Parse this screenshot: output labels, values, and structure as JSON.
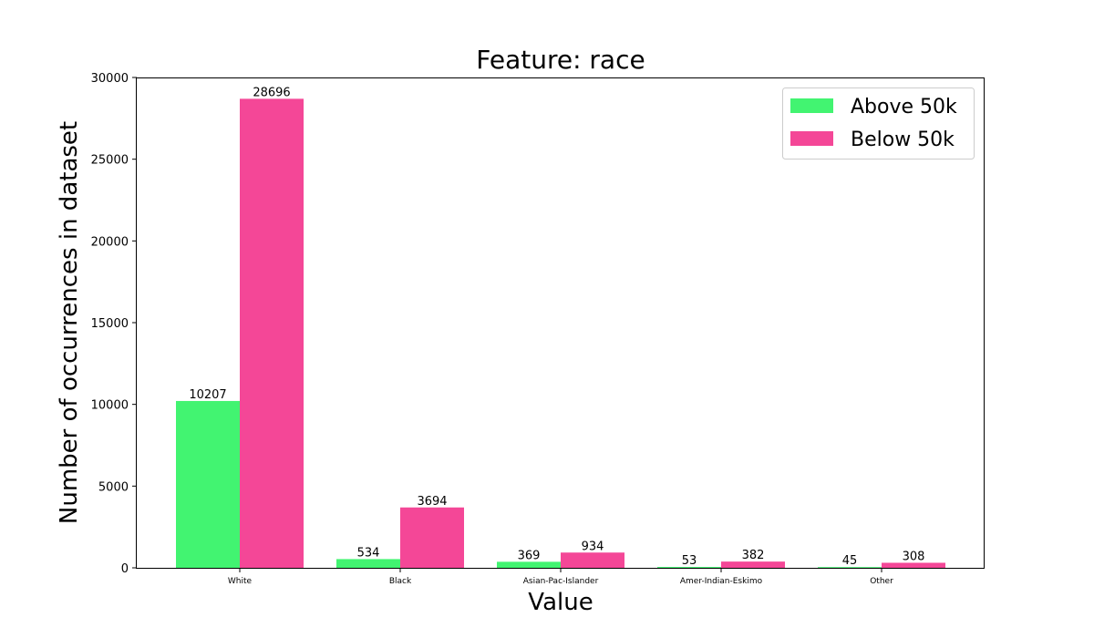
{
  "chart_data": {
    "type": "bar",
    "title": "Feature: race",
    "xlabel": "Value",
    "ylabel": "Number of occurrences in dataset",
    "categories": [
      "White",
      "Black",
      "Asian-Pac-Islander",
      "Amer-Indian-Eskimo",
      "Other"
    ],
    "series": [
      {
        "name": "Above 50k",
        "color": "#42f471",
        "values": [
          10207,
          534,
          369,
          53,
          45
        ]
      },
      {
        "name": "Below 50k",
        "color": "#f44797",
        "values": [
          28696,
          3694,
          934,
          382,
          308
        ]
      }
    ],
    "ylim": [
      0,
      30000
    ],
    "yticks": [
      0,
      5000,
      10000,
      15000,
      20000,
      25000,
      30000
    ],
    "grid": false,
    "legend": "top-right"
  }
}
